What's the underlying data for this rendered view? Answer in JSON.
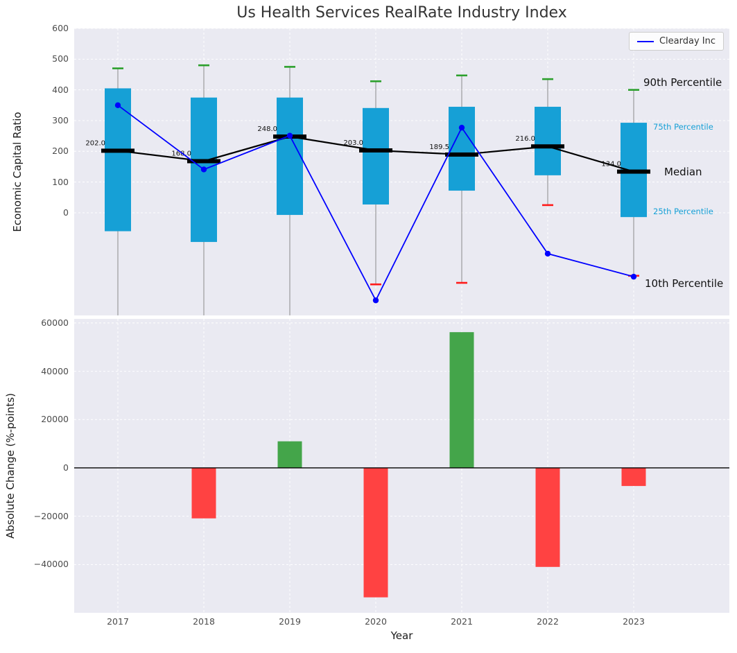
{
  "title": "Us Health Services RealRate Industry Index",
  "legend": {
    "label": "Clearday Inc"
  },
  "annotations": {
    "p90": "90th Percentile",
    "p75": "75th Percentile",
    "median": "Median",
    "p25": "25th Percentile",
    "p10": "10th Percentile"
  },
  "colors": {
    "box_fill": "#16a0d6",
    "median": "#000000",
    "company_line": "#0000ff",
    "p90_cap": "#2ca02c",
    "p10_cap": "#ff1a1a",
    "bar_up": "#44a54a",
    "bar_down": "#ff4242",
    "panel_bg": "#eaeaf2",
    "grid": "#ffffff",
    "whisker": "#8a8a8a"
  },
  "chart_data": [
    {
      "type": "boxplot",
      "title": "Us Health Services RealRate Industry Index",
      "ylabel": "Economic Capital Ratio",
      "ylim": [
        -334,
        600
      ],
      "yticks": [
        600,
        500,
        400,
        300,
        200,
        100,
        0
      ],
      "grid": true,
      "legend_position": "upper right",
      "categories": [
        "2017",
        "2018",
        "2019",
        "2020",
        "2021",
        "2022",
        "2023"
      ],
      "series": [
        {
          "name": "90th Percentile",
          "values": [
            470,
            480,
            475,
            428,
            447,
            435,
            400
          ]
        },
        {
          "name": "75th Percentile",
          "values": [
            405,
            375,
            375,
            341,
            345,
            345,
            293
          ]
        },
        {
          "name": "Median",
          "values": [
            202.0,
            168.0,
            248.0,
            203.0,
            189.5,
            216.0,
            134.0
          ]
        },
        {
          "name": "25th Percentile",
          "values": [
            -60,
            -95,
            -7,
            27,
            72,
            122,
            -14
          ]
        },
        {
          "name": "10th Percentile",
          "values": [
            null,
            null,
            null,
            -233,
            -228,
            25,
            -205
          ]
        },
        {
          "name": "Clearday Inc",
          "values": [
            350,
            141,
            251,
            -285,
            277,
            -133,
            -208
          ]
        }
      ],
      "median_labels": [
        "202.0",
        "168.0",
        "248.0",
        "203.0",
        "189.5",
        "216.0",
        "134.0"
      ],
      "notes": "10th percentile whiskers for 2017-2019 extend below the visible axis range"
    },
    {
      "type": "bar",
      "categories": [
        "2017",
        "2018",
        "2019",
        "2020",
        "2021",
        "2022",
        "2023"
      ],
      "values": [
        0,
        -20900,
        11000,
        -53600,
        56200,
        -41000,
        -7500
      ],
      "ylabel": "Absolute Change (%-points)",
      "xlabel": "Year",
      "ylim": [
        -60000,
        61700
      ],
      "yticks": [
        60000,
        40000,
        20000,
        0,
        -20000,
        -40000
      ],
      "grid": true
    }
  ]
}
